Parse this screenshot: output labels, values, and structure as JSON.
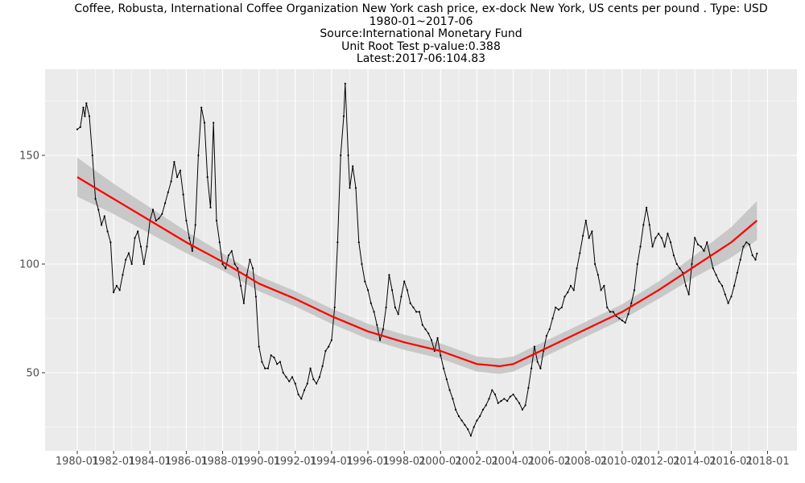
{
  "title_lines": [
    "Coffee, Robusta, International Coffee Organization New York cash price, ex-dock New York, US cents per pound . Type: USD",
    "1980-01~2017-06",
    "Source:International Monetary Fund",
    "Unit Root Test p-value:0.388",
    "Latest:2017-06:104.83"
  ],
  "colors": {
    "panel_bg": "#ebebeb",
    "grid": "#ffffff",
    "series": "#000000",
    "trend": "#ff0000",
    "band": "#c2c2c2"
  },
  "chart_data": {
    "type": "line",
    "title": "Coffee, Robusta, International Coffee Organization New York cash price, ex-dock New York, US cents per pound . Type: USD",
    "subtitle": [
      "1980-01~2017-06",
      "Source:International Monetary Fund",
      "Unit Root Test p-value:0.388",
      "Latest:2017-06:104.83"
    ],
    "xlabel": "",
    "ylabel": "",
    "x_domain": [
      "1980-01",
      "2018-06"
    ],
    "ylim": [
      18,
      188
    ],
    "x_ticks": [
      "1980-01",
      "1982-01",
      "1984-01",
      "1986-01",
      "1988-01",
      "1990-01",
      "1992-01",
      "1994-01",
      "1996-01",
      "1998-01",
      "2000-01",
      "2002-01",
      "2004-01",
      "2006-01",
      "2008-01",
      "2010-01",
      "2012-01",
      "2014-01",
      "2016-01",
      "2018-01"
    ],
    "y_ticks": [
      50,
      100,
      150
    ],
    "grid": true,
    "series": [
      {
        "values": [
          [
            "1980-01",
            162
          ],
          [
            "1980-03",
            163
          ],
          [
            "1980-05",
            172
          ],
          [
            "1980-06",
            168
          ],
          [
            "1980-07",
            174
          ],
          [
            "1980-09",
            168
          ],
          [
            "1980-11",
            150
          ],
          [
            "1981-01",
            130
          ],
          [
            "1981-03",
            125
          ],
          [
            "1981-05",
            118
          ],
          [
            "1981-07",
            122
          ],
          [
            "1981-09",
            115
          ],
          [
            "1981-11",
            110
          ],
          [
            "1982-01",
            87
          ],
          [
            "1982-03",
            90
          ],
          [
            "1982-05",
            88
          ],
          [
            "1982-07",
            95
          ],
          [
            "1982-09",
            102
          ],
          [
            "1982-11",
            105
          ],
          [
            "1983-01",
            100
          ],
          [
            "1983-03",
            112
          ],
          [
            "1983-05",
            115
          ],
          [
            "1983-07",
            108
          ],
          [
            "1983-09",
            100
          ],
          [
            "1983-11",
            108
          ],
          [
            "1984-01",
            120
          ],
          [
            "1984-03",
            125
          ],
          [
            "1984-05",
            120
          ],
          [
            "1984-07",
            121
          ],
          [
            "1984-09",
            123
          ],
          [
            "1984-11",
            128
          ],
          [
            "1985-01",
            133
          ],
          [
            "1985-03",
            138
          ],
          [
            "1985-05",
            147
          ],
          [
            "1985-07",
            140
          ],
          [
            "1985-09",
            143
          ],
          [
            "1985-11",
            132
          ],
          [
            "1986-01",
            120
          ],
          [
            "1986-03",
            112
          ],
          [
            "1986-05",
            106
          ],
          [
            "1986-07",
            118
          ],
          [
            "1986-09",
            150
          ],
          [
            "1986-11",
            172
          ],
          [
            "1987-01",
            165
          ],
          [
            "1987-03",
            140
          ],
          [
            "1987-05",
            126
          ],
          [
            "1987-07",
            165
          ],
          [
            "1987-09",
            120
          ],
          [
            "1987-11",
            110
          ],
          [
            "1988-01",
            100
          ],
          [
            "1988-03",
            98
          ],
          [
            "1988-05",
            104
          ],
          [
            "1988-07",
            106
          ],
          [
            "1988-09",
            100
          ],
          [
            "1988-11",
            98
          ],
          [
            "1989-01",
            90
          ],
          [
            "1989-03",
            82
          ],
          [
            "1989-05",
            95
          ],
          [
            "1989-07",
            102
          ],
          [
            "1989-09",
            98
          ],
          [
            "1989-11",
            85
          ],
          [
            "1990-01",
            62
          ],
          [
            "1990-03",
            55
          ],
          [
            "1990-05",
            52
          ],
          [
            "1990-07",
            52
          ],
          [
            "1990-09",
            58
          ],
          [
            "1990-11",
            57
          ],
          [
            "1991-01",
            54
          ],
          [
            "1991-03",
            55
          ],
          [
            "1991-05",
            50
          ],
          [
            "1991-07",
            48
          ],
          [
            "1991-09",
            46
          ],
          [
            "1991-11",
            48
          ],
          [
            "1992-01",
            45
          ],
          [
            "1992-03",
            40
          ],
          [
            "1992-05",
            38
          ],
          [
            "1992-07",
            42
          ],
          [
            "1992-09",
            45
          ],
          [
            "1992-11",
            52
          ],
          [
            "1993-01",
            47
          ],
          [
            "1993-03",
            45
          ],
          [
            "1993-05",
            48
          ],
          [
            "1993-07",
            53
          ],
          [
            "1993-09",
            60
          ],
          [
            "1993-11",
            62
          ],
          [
            "1994-01",
            65
          ],
          [
            "1994-03",
            80
          ],
          [
            "1994-05",
            110
          ],
          [
            "1994-07",
            150
          ],
          [
            "1994-09",
            168
          ],
          [
            "1994-10",
            183
          ],
          [
            "1994-12",
            150
          ],
          [
            "1995-01",
            135
          ],
          [
            "1995-03",
            145
          ],
          [
            "1995-05",
            135
          ],
          [
            "1995-07",
            110
          ],
          [
            "1995-09",
            100
          ],
          [
            "1995-11",
            92
          ],
          [
            "1996-01",
            88
          ],
          [
            "1996-03",
            82
          ],
          [
            "1996-05",
            78
          ],
          [
            "1996-07",
            72
          ],
          [
            "1996-09",
            65
          ],
          [
            "1996-11",
            70
          ],
          [
            "1997-01",
            80
          ],
          [
            "1997-03",
            95
          ],
          [
            "1997-05",
            88
          ],
          [
            "1997-07",
            80
          ],
          [
            "1997-09",
            77
          ],
          [
            "1997-11",
            85
          ],
          [
            "1998-01",
            92
          ],
          [
            "1998-03",
            88
          ],
          [
            "1998-05",
            82
          ],
          [
            "1998-07",
            80
          ],
          [
            "1998-09",
            78
          ],
          [
            "1998-11",
            78
          ],
          [
            "1999-01",
            72
          ],
          [
            "1999-03",
            70
          ],
          [
            "1999-05",
            68
          ],
          [
            "1999-07",
            65
          ],
          [
            "1999-09",
            60
          ],
          [
            "1999-11",
            66
          ],
          [
            "2000-01",
            58
          ],
          [
            "2000-03",
            52
          ],
          [
            "2000-05",
            47
          ],
          [
            "2000-07",
            42
          ],
          [
            "2000-09",
            38
          ],
          [
            "2000-11",
            33
          ],
          [
            "2001-01",
            30
          ],
          [
            "2001-03",
            28
          ],
          [
            "2001-05",
            26
          ],
          [
            "2001-07",
            24
          ],
          [
            "2001-09",
            21
          ],
          [
            "2001-11",
            25
          ],
          [
            "2002-01",
            28
          ],
          [
            "2002-03",
            30
          ],
          [
            "2002-05",
            33
          ],
          [
            "2002-07",
            35
          ],
          [
            "2002-09",
            38
          ],
          [
            "2002-11",
            42
          ],
          [
            "2003-01",
            40
          ],
          [
            "2003-03",
            36
          ],
          [
            "2003-05",
            37
          ],
          [
            "2003-07",
            38
          ],
          [
            "2003-09",
            37
          ],
          [
            "2003-11",
            39
          ],
          [
            "2004-01",
            40
          ],
          [
            "2004-03",
            38
          ],
          [
            "2004-05",
            36
          ],
          [
            "2004-07",
            33
          ],
          [
            "2004-09",
            35
          ],
          [
            "2004-11",
            43
          ],
          [
            "2005-01",
            52
          ],
          [
            "2005-03",
            62
          ],
          [
            "2005-05",
            55
          ],
          [
            "2005-07",
            52
          ],
          [
            "2005-09",
            60
          ],
          [
            "2005-11",
            67
          ],
          [
            "2006-01",
            70
          ],
          [
            "2006-03",
            75
          ],
          [
            "2006-05",
            80
          ],
          [
            "2006-07",
            79
          ],
          [
            "2006-09",
            80
          ],
          [
            "2006-11",
            85
          ],
          [
            "2007-01",
            87
          ],
          [
            "2007-03",
            90
          ],
          [
            "2007-05",
            88
          ],
          [
            "2007-07",
            98
          ],
          [
            "2007-09",
            105
          ],
          [
            "2007-11",
            113
          ],
          [
            "2008-01",
            120
          ],
          [
            "2008-03",
            112
          ],
          [
            "2008-05",
            115
          ],
          [
            "2008-07",
            100
          ],
          [
            "2008-09",
            95
          ],
          [
            "2008-11",
            88
          ],
          [
            "2009-01",
            90
          ],
          [
            "2009-03",
            80
          ],
          [
            "2009-05",
            78
          ],
          [
            "2009-07",
            78
          ],
          [
            "2009-09",
            76
          ],
          [
            "2009-11",
            75
          ],
          [
            "2010-01",
            74
          ],
          [
            "2010-03",
            73
          ],
          [
            "2010-05",
            77
          ],
          [
            "2010-07",
            82
          ],
          [
            "2010-09",
            88
          ],
          [
            "2010-11",
            100
          ],
          [
            "2011-01",
            108
          ],
          [
            "2011-03",
            118
          ],
          [
            "2011-05",
            126
          ],
          [
            "2011-07",
            118
          ],
          [
            "2011-09",
            108
          ],
          [
            "2011-11",
            112
          ],
          [
            "2012-01",
            114
          ],
          [
            "2012-03",
            112
          ],
          [
            "2012-05",
            108
          ],
          [
            "2012-07",
            114
          ],
          [
            "2012-09",
            110
          ],
          [
            "2012-11",
            104
          ],
          [
            "2013-01",
            100
          ],
          [
            "2013-03",
            98
          ],
          [
            "2013-05",
            96
          ],
          [
            "2013-07",
            90
          ],
          [
            "2013-09",
            86
          ],
          [
            "2013-11",
            100
          ],
          [
            "2014-01",
            112
          ],
          [
            "2014-03",
            109
          ],
          [
            "2014-05",
            108
          ],
          [
            "2014-07",
            106
          ],
          [
            "2014-09",
            110
          ],
          [
            "2014-11",
            104
          ],
          [
            "2015-01",
            98
          ],
          [
            "2015-03",
            95
          ],
          [
            "2015-05",
            92
          ],
          [
            "2015-07",
            90
          ],
          [
            "2015-09",
            86
          ],
          [
            "2015-11",
            82
          ],
          [
            "2016-01",
            85
          ],
          [
            "2016-03",
            90
          ],
          [
            "2016-05",
            96
          ],
          [
            "2016-07",
            102
          ],
          [
            "2016-09",
            108
          ],
          [
            "2016-11",
            110
          ],
          [
            "2017-01",
            109
          ],
          [
            "2017-03",
            104
          ],
          [
            "2017-05",
            102
          ],
          [
            "2017-06",
            104.83
          ]
        ]
      }
    ],
    "trend": {
      "values": [
        [
          "1980-01",
          140
        ],
        [
          "1982-01",
          130
        ],
        [
          "1984-01",
          120
        ],
        [
          "1986-01",
          110
        ],
        [
          "1988-01",
          101
        ],
        [
          "1990-01",
          91
        ],
        [
          "1992-01",
          84
        ],
        [
          "1994-01",
          76
        ],
        [
          "1996-01",
          69
        ],
        [
          "1998-01",
          64
        ],
        [
          "2000-01",
          60
        ],
        [
          "2002-01",
          54
        ],
        [
          "2003-04",
          53
        ],
        [
          "2004-01",
          54
        ],
        [
          "2006-01",
          62
        ],
        [
          "2008-01",
          70
        ],
        [
          "2010-01",
          78
        ],
        [
          "2012-01",
          88
        ],
        [
          "2014-01",
          99
        ],
        [
          "2016-01",
          110
        ],
        [
          "2017-06",
          120
        ]
      ],
      "band_halfwidth": [
        9,
        7,
        6,
        5,
        4,
        3.5,
        3.5,
        3.5,
        3.5,
        3.5,
        3.5,
        3.5,
        3.5,
        3.5,
        3.5,
        3.5,
        3.5,
        4,
        5,
        7,
        9
      ]
    }
  }
}
